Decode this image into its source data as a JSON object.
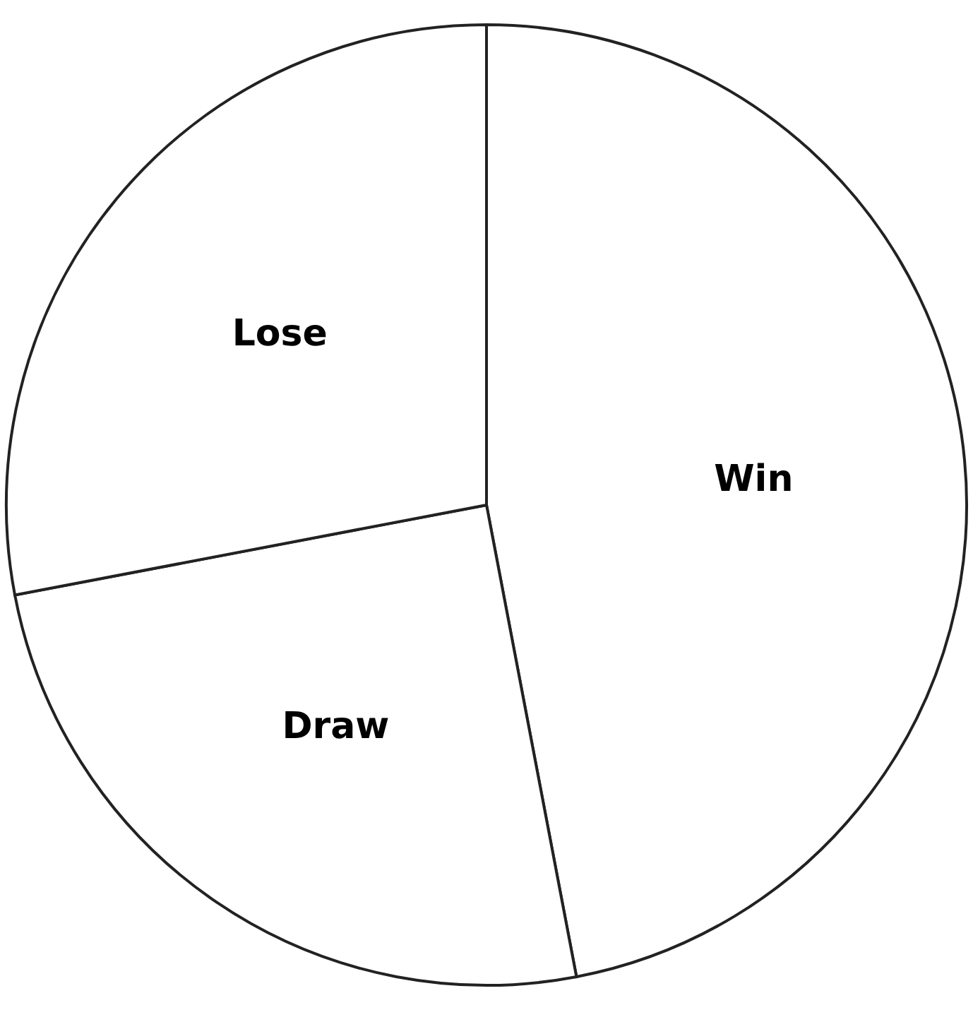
{
  "chart_data": {
    "type": "pie",
    "categories": [
      "Win",
      "Draw",
      "Lose"
    ],
    "values": [
      47,
      25,
      28
    ],
    "colors": [
      "#ffffff",
      "#ffffff",
      "#ffffff"
    ]
  }
}
